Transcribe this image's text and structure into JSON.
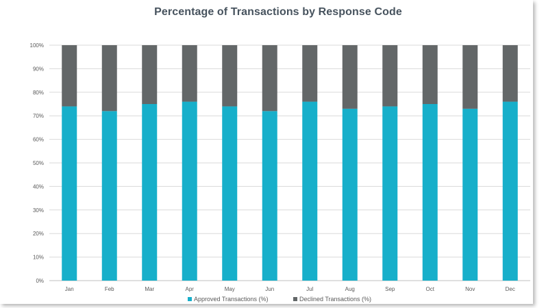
{
  "chart_data": {
    "type": "bar",
    "stacked": true,
    "title": "Percentage of Transactions by Response Code",
    "categories": [
      "Jan",
      "Feb",
      "Mar",
      "Apr",
      "May",
      "Jun",
      "Jul",
      "Aug",
      "Sep",
      "Oct",
      "Nov",
      "Dec"
    ],
    "series": [
      {
        "name": "Approved Transactions (%)",
        "color": "#17afca",
        "values": [
          74,
          72,
          75,
          76,
          74,
          72,
          76,
          73,
          74,
          75,
          73,
          76
        ]
      },
      {
        "name": "Declined Transactions (%)",
        "color": "#636768",
        "values": [
          26,
          28,
          25,
          24,
          26,
          28,
          24,
          27,
          26,
          25,
          27,
          24
        ]
      }
    ],
    "yticks": [
      "0%",
      "10%",
      "20%",
      "30%",
      "40%",
      "50%",
      "60%",
      "70%",
      "80%",
      "90%",
      "100%"
    ],
    "ylim": [
      0,
      100
    ],
    "grid": true,
    "legend": "bottom-center"
  }
}
